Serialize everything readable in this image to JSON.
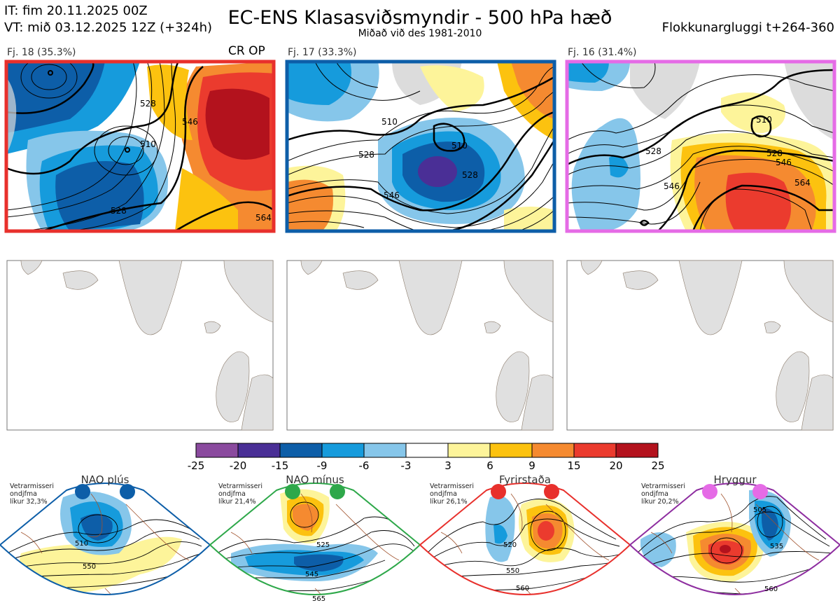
{
  "header": {
    "it": "IT: fim 20.11.2025 00Z",
    "vt": "VT: mið 03.12.2025 12Z  (+324h)",
    "title": "EC-ENS Klasasviðsmyndir - 500 hPa hæð",
    "subtitle": "Miðað við des 1981-2010",
    "window": "Flokkunargluggi t+264-360"
  },
  "clusters": [
    {
      "label": "Fj. 18 (35.3%)",
      "tag": "CR OP",
      "frame_color": "#e8302c",
      "contours": [
        "510",
        "528",
        "546",
        "564"
      ]
    },
    {
      "label": "Fj. 17 (33.3%)",
      "frame_color": "#0d5ea8",
      "contours": [
        "510",
        "528",
        "546"
      ]
    },
    {
      "label": "Fj. 16 (31.4%)",
      "frame_color": "#e56be6",
      "contours": [
        "510",
        "528",
        "546",
        "564"
      ]
    }
  ],
  "colorbar": {
    "ticks": [
      "-25",
      "-20",
      "-15",
      "-9",
      "-6",
      "-3",
      "3",
      "6",
      "9",
      "15",
      "20",
      "25"
    ],
    "colors": [
      "#8a4a9e",
      "#4a2f96",
      "#0d5ea8",
      "#169bdc",
      "#86c6ea",
      "#ffffff",
      "#fdf49a",
      "#fcc20f",
      "#f58a30",
      "#eb3b2e",
      "#b3121d"
    ]
  },
  "regimes": [
    {
      "name": "NAO plús",
      "note": [
        "Vetrarmisseri",
        "ondjfma",
        "líkur 32,3%"
      ],
      "color": "#0d5ea8",
      "contours": [
        "510",
        "550"
      ]
    },
    {
      "name": "NAO mínus",
      "note": [
        "Vetrarmisseri",
        "ondjfma",
        "líkur 21,4%"
      ],
      "color": "#2ea84a",
      "contours": [
        "525",
        "545",
        "565"
      ]
    },
    {
      "name": "Fyrirstaða",
      "note": [
        "Vetrarmisseri",
        "ondjfma",
        "líkur 26,1%"
      ],
      "color": "#e8302c",
      "contours": [
        "520",
        "550",
        "560"
      ]
    },
    {
      "name": "Hryggur",
      "note": [
        "Vetrarmisseri",
        "ondjfma",
        "líkur 20,2%"
      ],
      "color": "#8e2ea0",
      "contours": [
        "505",
        "535",
        "560"
      ]
    }
  ]
}
